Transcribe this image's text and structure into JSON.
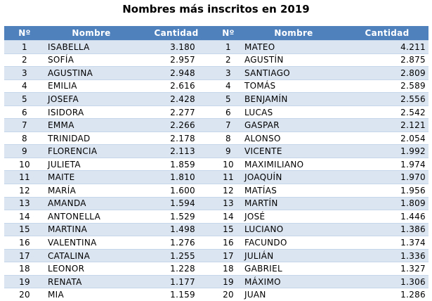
{
  "title": "Nombres más inscritos en 2019",
  "table": {
    "headers": [
      "Nº",
      "Nombre",
      "Cantidad",
      "Nº",
      "Nombre",
      "Cantidad"
    ],
    "rows": [
      [
        "1",
        "ISABELLA",
        "3.180",
        "1",
        "MATEO",
        "4.211"
      ],
      [
        "2",
        "SOFÍA",
        "2.957",
        "2",
        "AGUSTÍN",
        "2.875"
      ],
      [
        "3",
        "AGUSTINA",
        "2.948",
        "3",
        "SANTIAGO",
        "2.809"
      ],
      [
        "4",
        "EMILIA",
        "2.616",
        "4",
        "TOMÁS",
        "2.589"
      ],
      [
        "5",
        "JOSEFA",
        "2.428",
        "5",
        "BENJAMÍN",
        "2.556"
      ],
      [
        "6",
        "ISIDORA",
        "2.277",
        "6",
        "LUCAS",
        "2.542"
      ],
      [
        "7",
        "EMMA",
        "2.266",
        "7",
        "GASPAR",
        "2.121"
      ],
      [
        "8",
        "TRINIDAD",
        "2.178",
        "8",
        "ALONSO",
        "2.054"
      ],
      [
        "9",
        "FLORENCIA",
        "2.113",
        "9",
        "VICENTE",
        "1.992"
      ],
      [
        "10",
        "JULIETA",
        "1.859",
        "10",
        "MAXIMILIANO",
        "1.974"
      ],
      [
        "11",
        "MAITE",
        "1.810",
        "11",
        "JOAQUÍN",
        "1.970"
      ],
      [
        "12",
        "MARÍA",
        "1.600",
        "12",
        "MATÍAS",
        "1.956"
      ],
      [
        "13",
        "AMANDA",
        "1.594",
        "13",
        "MARTÍN",
        "1.809"
      ],
      [
        "14",
        "ANTONELLA",
        "1.529",
        "14",
        "JOSÉ",
        "1.446"
      ],
      [
        "15",
        "MARTINA",
        "1.498",
        "15",
        "LUCIANO",
        "1.386"
      ],
      [
        "16",
        "VALENTINA",
        "1.276",
        "16",
        "FACUNDO",
        "1.374"
      ],
      [
        "17",
        "CATALINA",
        "1.255",
        "17",
        "JULIÁN",
        "1.336"
      ],
      [
        "18",
        "LEONOR",
        "1.228",
        "18",
        "GABRIEL",
        "1.327"
      ],
      [
        "19",
        "RENATA",
        "1.177",
        "19",
        "MÁXIMO",
        "1.306"
      ],
      [
        "20",
        "MIA",
        "1.159",
        "20",
        "JUAN",
        "1.286"
      ]
    ]
  }
}
